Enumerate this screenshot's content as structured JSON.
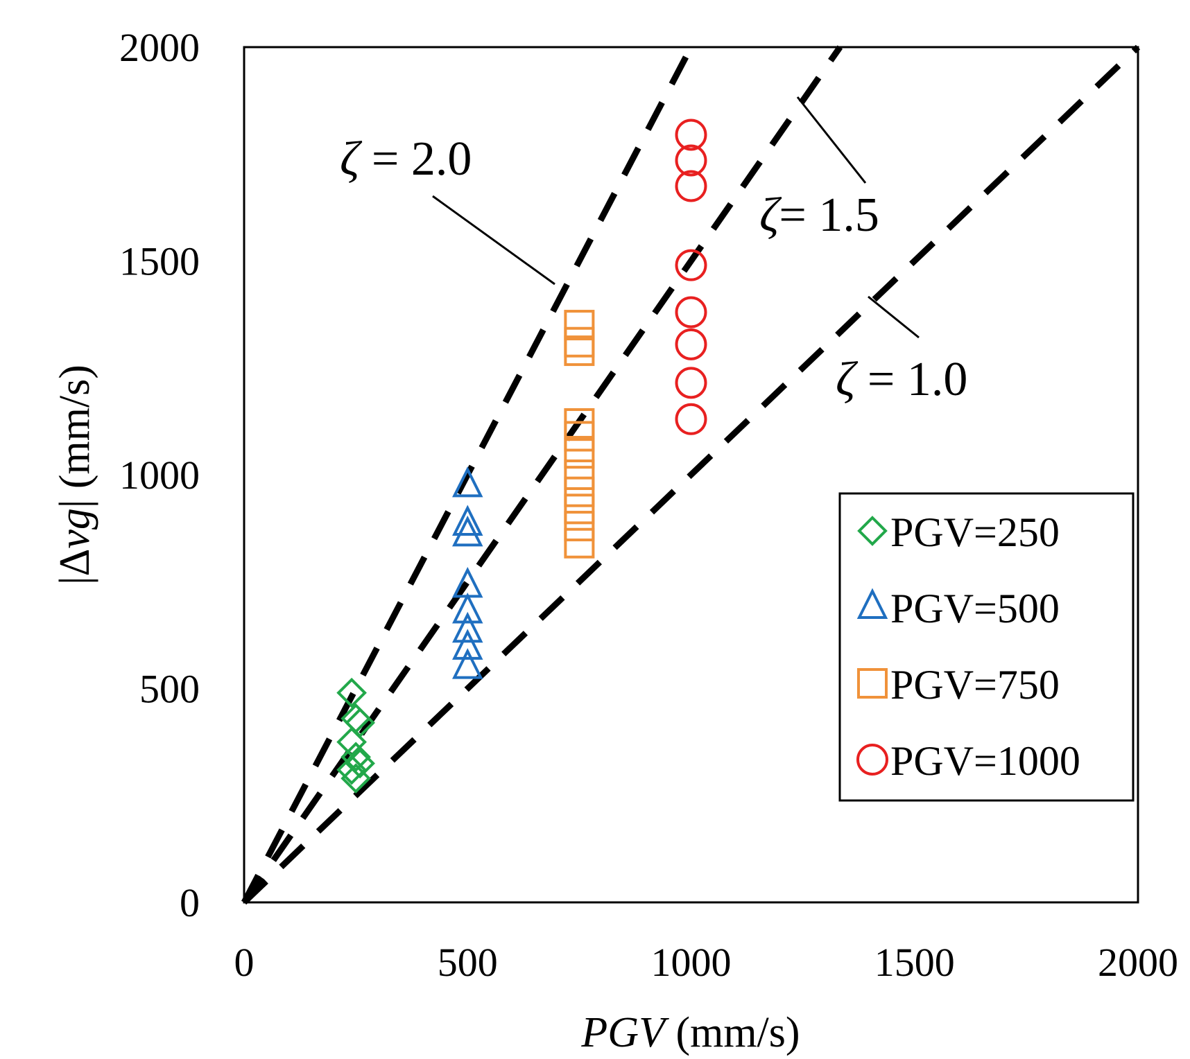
{
  "chart_data": {
    "type": "scatter",
    "xlabel_italic": "PGV",
    "xlabel_unit": " (mm/s)",
    "ylabel_prefix": "|Δ",
    "ylabel_italic": "vg",
    "ylabel_suffix": "| (mm/s)",
    "xlim": [
      0,
      2000
    ],
    "ylim": [
      0,
      2000
    ],
    "xticks": [
      0,
      500,
      1000,
      1500,
      2000
    ],
    "yticks": [
      0,
      500,
      1000,
      1500,
      2000
    ],
    "legend_position": "right-middle",
    "reference_lines": [
      {
        "name": "zeta-2.0",
        "greek": "ζ",
        "text": " = 2.0",
        "slope": 2.0
      },
      {
        "name": "zeta-1.5",
        "greek": "ζ",
        "text": "= 1.5",
        "slope": 1.5
      },
      {
        "name": "zeta-1.0",
        "greek": "ζ",
        "text": " = 1.0",
        "slope": 1.0
      }
    ],
    "series": [
      {
        "name": "PGV=250",
        "marker": "diamond",
        "color": "#22A84A",
        "x": 250,
        "values": [
          490,
          430,
          420,
          375,
          340,
          325,
          310,
          290
        ]
      },
      {
        "name": "PGV=500",
        "marker": "triangle",
        "color": "#1F6FC0",
        "x": 500,
        "values": [
          975,
          885,
          860,
          740,
          680,
          635,
          595,
          550
        ]
      },
      {
        "name": "PGV=750",
        "marker": "square",
        "color": "#F0923A",
        "x": 750,
        "values": [
          1350,
          1310,
          1290,
          1120,
          1090,
          1050,
          1000,
          960,
          920,
          880,
          840
        ]
      },
      {
        "name": "PGV=1000",
        "marker": "circle",
        "color": "#E82020",
        "x": 1000,
        "values": [
          1795,
          1735,
          1675,
          1490,
          1380,
          1305,
          1215,
          1130
        ]
      }
    ]
  }
}
